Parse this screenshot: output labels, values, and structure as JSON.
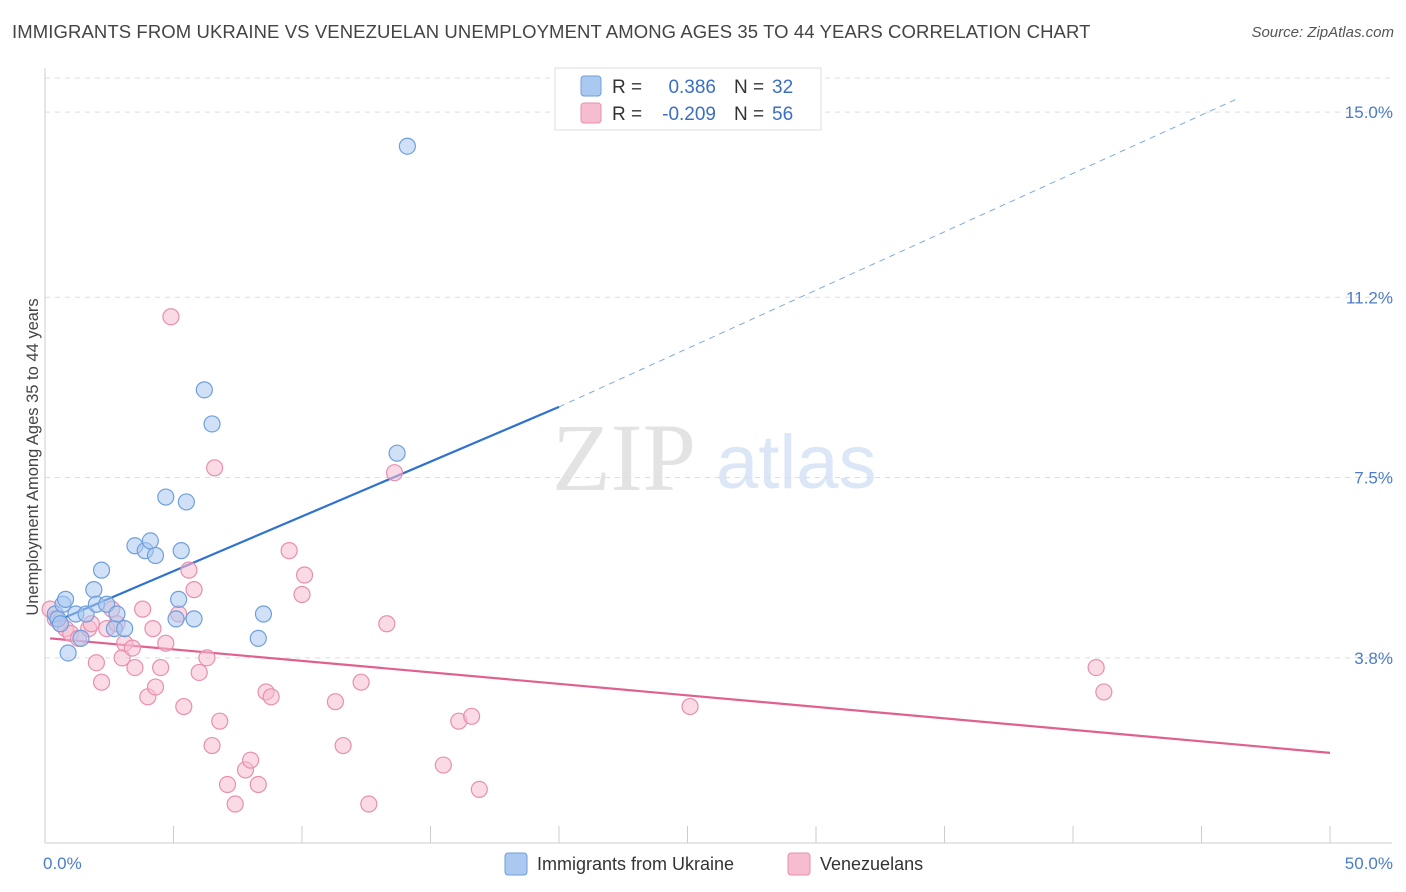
{
  "title": "IMMIGRANTS FROM UKRAINE VS VENEZUELAN UNEMPLOYMENT AMONG AGES 35 TO 44 YEARS CORRELATION CHART",
  "source": "Source: ZipAtlas.com",
  "watermark": {
    "zip": "ZIP",
    "atlas": "atlas"
  },
  "colors": {
    "blue_fill": "#aac8f0",
    "blue_stroke": "#6f9fdc",
    "blue_line": "#2f72d0",
    "pink_fill": "#f6bcd0",
    "pink_stroke": "#e88fb0",
    "pink_line": "#e0608f",
    "grid": "#dddddd",
    "tick_label": "#4a7cc9"
  },
  "legend": {
    "rows": [
      {
        "r_label": "R =",
        "r_value": "0.386",
        "n_label": "N =",
        "n_value": "32"
      },
      {
        "r_label": "R =",
        "r_value": "-0.209",
        "n_label": "N =",
        "n_value": "56"
      }
    ]
  },
  "bottom_legend": [
    "Immigrants from Ukraine",
    "Venezuelans"
  ],
  "chart_data": {
    "type": "scatter",
    "title": "IMMIGRANTS FROM UKRAINE VS VENEZUELAN UNEMPLOYMENT AMONG AGES 35 TO 44 YEARS CORRELATION CHART",
    "xlabel": "",
    "ylabel": "Unemployment Among Ages 35 to 44 years",
    "xlim": [
      0,
      50
    ],
    "ylim": [
      0,
      15.7
    ],
    "x_tick_labels": [
      "0.0%",
      "50.0%"
    ],
    "y_ticks": [
      3.8,
      7.5,
      11.2,
      15.0
    ],
    "y_tick_labels": [
      "3.8%",
      "7.5%",
      "11.2%",
      "15.0%"
    ],
    "series": [
      {
        "name": "Immigrants from Ukraine",
        "r": 0.386,
        "n": 32,
        "trend": {
          "x0": 0.2,
          "y0": 4.5,
          "x1": 20.0,
          "y1": 8.95,
          "x_dashed_end": 46.5,
          "y_dashed_end": 15.3
        },
        "points": [
          [
            0.4,
            4.7
          ],
          [
            0.5,
            4.6
          ],
          [
            0.6,
            4.5
          ],
          [
            0.7,
            4.9
          ],
          [
            0.8,
            5.0
          ],
          [
            0.9,
            3.9
          ],
          [
            1.2,
            4.7
          ],
          [
            1.4,
            4.2
          ],
          [
            1.6,
            4.7
          ],
          [
            1.9,
            5.2
          ],
          [
            2.0,
            4.9
          ],
          [
            2.2,
            5.6
          ],
          [
            2.4,
            4.9
          ],
          [
            2.7,
            4.4
          ],
          [
            2.8,
            4.7
          ],
          [
            3.1,
            4.4
          ],
          [
            3.5,
            6.1
          ],
          [
            3.9,
            6.0
          ],
          [
            4.1,
            6.2
          ],
          [
            4.3,
            5.9
          ],
          [
            4.7,
            7.1
          ],
          [
            5.1,
            4.6
          ],
          [
            5.2,
            5.0
          ],
          [
            5.3,
            6.0
          ],
          [
            5.5,
            7.0
          ],
          [
            5.8,
            4.6
          ],
          [
            6.2,
            9.3
          ],
          [
            6.5,
            8.6
          ],
          [
            8.3,
            4.2
          ],
          [
            8.5,
            4.7
          ],
          [
            13.7,
            8.0
          ],
          [
            14.1,
            14.3
          ]
        ]
      },
      {
        "name": "Venezuelans",
        "r": -0.209,
        "n": 56,
        "trend": {
          "x0": 0.2,
          "y0": 4.2,
          "x1": 50.0,
          "y1": 1.85
        },
        "points": [
          [
            0.2,
            4.8
          ],
          [
            0.4,
            4.6
          ],
          [
            0.6,
            4.5
          ],
          [
            0.8,
            4.4
          ],
          [
            1.0,
            4.3
          ],
          [
            1.3,
            4.2
          ],
          [
            1.7,
            4.4
          ],
          [
            1.8,
            4.5
          ],
          [
            2.0,
            3.7
          ],
          [
            2.2,
            3.3
          ],
          [
            2.4,
            4.4
          ],
          [
            2.6,
            4.8
          ],
          [
            2.8,
            4.5
          ],
          [
            3.0,
            3.8
          ],
          [
            3.1,
            4.1
          ],
          [
            3.4,
            4.0
          ],
          [
            3.5,
            3.6
          ],
          [
            3.8,
            4.8
          ],
          [
            4.0,
            3.0
          ],
          [
            4.2,
            4.4
          ],
          [
            4.3,
            3.2
          ],
          [
            4.5,
            3.6
          ],
          [
            4.7,
            4.1
          ],
          [
            4.9,
            10.8
          ],
          [
            5.2,
            4.7
          ],
          [
            5.4,
            2.8
          ],
          [
            5.6,
            5.6
          ],
          [
            5.8,
            5.2
          ],
          [
            6.0,
            3.5
          ],
          [
            6.3,
            3.8
          ],
          [
            6.5,
            2.0
          ],
          [
            6.6,
            7.7
          ],
          [
            6.8,
            2.5
          ],
          [
            7.1,
            1.2
          ],
          [
            7.4,
            0.8
          ],
          [
            7.8,
            1.5
          ],
          [
            8.0,
            1.7
          ],
          [
            8.3,
            1.2
          ],
          [
            8.6,
            3.1
          ],
          [
            8.8,
            3.0
          ],
          [
            9.5,
            6.0
          ],
          [
            10.0,
            5.1
          ],
          [
            10.1,
            5.5
          ],
          [
            11.3,
            2.9
          ],
          [
            11.6,
            2.0
          ],
          [
            12.3,
            3.3
          ],
          [
            12.6,
            0.8
          ],
          [
            13.3,
            4.5
          ],
          [
            13.6,
            7.6
          ],
          [
            15.5,
            1.6
          ],
          [
            16.1,
            2.5
          ],
          [
            16.6,
            2.6
          ],
          [
            16.9,
            1.1
          ],
          [
            25.1,
            2.8
          ],
          [
            40.9,
            3.6
          ],
          [
            41.2,
            3.1
          ]
        ]
      }
    ]
  }
}
